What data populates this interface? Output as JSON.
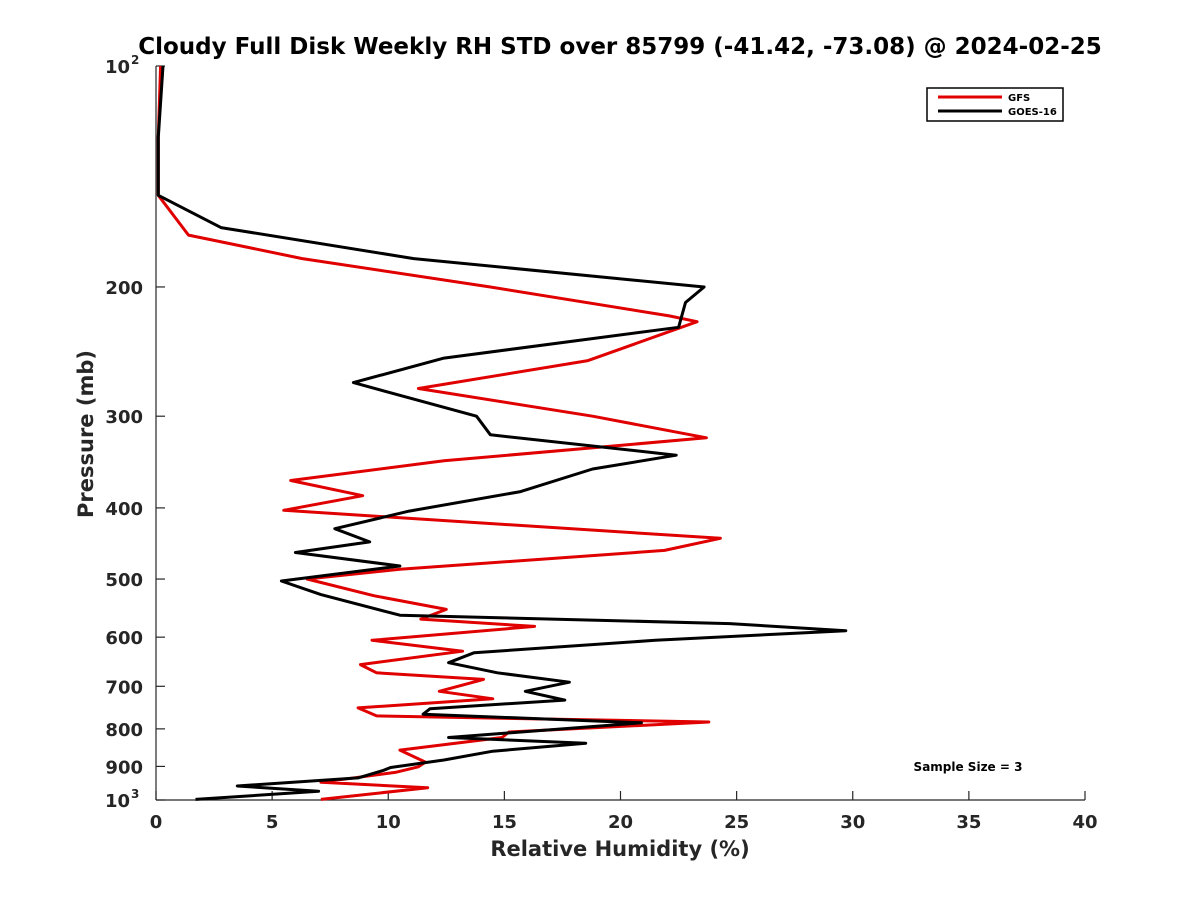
{
  "chart_data": {
    "type": "line",
    "title": "Cloudy Full Disk Weekly RH STD over 85799 (-41.42, -73.08) @ 2024-02-25",
    "xlabel": "Relative Humidity (%)",
    "ylabel": "Pressure (mb)",
    "xlim": [
      0,
      40
    ],
    "ylim": [
      100,
      1000
    ],
    "y_scale": "log",
    "y_reversed": true,
    "grid": false,
    "legend_position": "top-right",
    "x_ticks": [
      {
        "value": 0,
        "label": "0"
      },
      {
        "value": 5,
        "label": "5"
      },
      {
        "value": 10,
        "label": "10"
      },
      {
        "value": 15,
        "label": "15"
      },
      {
        "value": 20,
        "label": "20"
      },
      {
        "value": 25,
        "label": "25"
      },
      {
        "value": 30,
        "label": "30"
      },
      {
        "value": 35,
        "label": "35"
      },
      {
        "value": 40,
        "label": "40"
      }
    ],
    "y_ticks": [
      {
        "value": 100,
        "label": "10",
        "sup": "2"
      },
      {
        "value": 200,
        "label": "200",
        "sup": ""
      },
      {
        "value": 300,
        "label": "300",
        "sup": ""
      },
      {
        "value": 400,
        "label": "400",
        "sup": ""
      },
      {
        "value": 500,
        "label": "500",
        "sup": ""
      },
      {
        "value": 600,
        "label": "600",
        "sup": ""
      },
      {
        "value": 700,
        "label": "700",
        "sup": ""
      },
      {
        "value": 800,
        "label": "800",
        "sup": ""
      },
      {
        "value": 900,
        "label": "900",
        "sup": ""
      },
      {
        "value": 1000,
        "label": "10",
        "sup": "3"
      }
    ],
    "annotation": "Sample Size = 3",
    "series": [
      {
        "name": "GFS",
        "color": "#e00000",
        "points": [
          [
            0.2,
            100
          ],
          [
            0.1,
            125
          ],
          [
            0.1,
            150
          ],
          [
            1.4,
            170
          ],
          [
            6.3,
            183
          ],
          [
            14.4,
            200
          ],
          [
            22.1,
            219
          ],
          [
            23.3,
            223
          ],
          [
            18.6,
            252
          ],
          [
            11.3,
            275
          ],
          [
            18.8,
            300
          ],
          [
            23.7,
            321
          ],
          [
            12.4,
            345
          ],
          [
            5.8,
            367
          ],
          [
            8.9,
            385
          ],
          [
            5.5,
            403
          ],
          [
            24.3,
            440
          ],
          [
            21.9,
            457
          ],
          [
            10.5,
            485
          ],
          [
            6.5,
            500
          ],
          [
            9.4,
            527
          ],
          [
            12.5,
            550
          ],
          [
            11.4,
            567
          ],
          [
            16.3,
            580
          ],
          [
            9.3,
            606
          ],
          [
            13.2,
            627
          ],
          [
            8.8,
            654
          ],
          [
            9.5,
            671
          ],
          [
            14.1,
            685
          ],
          [
            12.2,
            711
          ],
          [
            14.5,
            728
          ],
          [
            8.7,
            749
          ],
          [
            9.5,
            768
          ],
          [
            23.8,
            783
          ],
          [
            15.2,
            808
          ],
          [
            14.9,
            822
          ],
          [
            10.5,
            855
          ],
          [
            11.6,
            888
          ],
          [
            11.3,
            901
          ],
          [
            10.3,
            917
          ],
          [
            7.1,
            946
          ],
          [
            11.7,
            962
          ],
          [
            7.1,
            998
          ]
        ]
      },
      {
        "name": "GOES-16",
        "color": "#000000",
        "points": [
          [
            0.3,
            100
          ],
          [
            0.1,
            125
          ],
          [
            0.1,
            150
          ],
          [
            2.8,
            166
          ],
          [
            11.1,
            183
          ],
          [
            23.6,
            200
          ],
          [
            22.8,
            210
          ],
          [
            22.5,
            227
          ],
          [
            12.4,
            250
          ],
          [
            8.5,
            270
          ],
          [
            13.8,
            300
          ],
          [
            14.4,
            318
          ],
          [
            22.4,
            339
          ],
          [
            18.8,
            354
          ],
          [
            15.7,
            380
          ],
          [
            10.9,
            404
          ],
          [
            7.7,
            427
          ],
          [
            9.2,
            445
          ],
          [
            6.0,
            460
          ],
          [
            10.5,
            480
          ],
          [
            5.4,
            503
          ],
          [
            7.1,
            525
          ],
          [
            10.5,
            560
          ],
          [
            24.7,
            575
          ],
          [
            29.7,
            588
          ],
          [
            21.5,
            606
          ],
          [
            13.7,
            630
          ],
          [
            12.6,
            650
          ],
          [
            14.7,
            671
          ],
          [
            17.8,
            691
          ],
          [
            15.9,
            711
          ],
          [
            17.6,
            731
          ],
          [
            11.8,
            751
          ],
          [
            11.5,
            764
          ],
          [
            20.9,
            785
          ],
          [
            12.6,
            822
          ],
          [
            18.5,
            837
          ],
          [
            14.5,
            858
          ],
          [
            12.4,
            882
          ],
          [
            10.1,
            903
          ],
          [
            9.8,
            911
          ],
          [
            8.7,
            933
          ],
          [
            3.5,
            957
          ],
          [
            7.0,
            973
          ],
          [
            1.7,
            998
          ]
        ]
      }
    ]
  }
}
